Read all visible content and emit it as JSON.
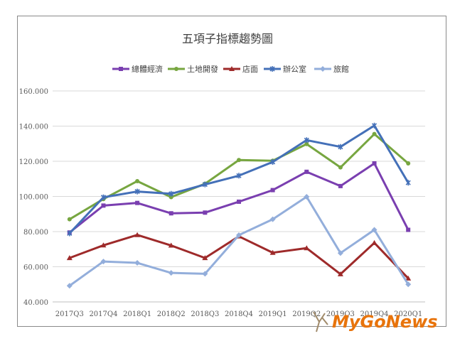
{
  "chart_data": {
    "type": "line",
    "title": "五項子指標趨勢圖",
    "categories": [
      "2017Q3",
      "2017Q4",
      "2018Q1",
      "2018Q2",
      "2018Q3",
      "2018Q4",
      "2019Q1",
      "2019Q2",
      "2019Q3",
      "2019Q4",
      "2020Q1"
    ],
    "ylim": [
      40,
      160
    ],
    "yticks": [
      "40.000",
      "60.000",
      "80.000",
      "100.000",
      "120.000",
      "140.000",
      "160.000"
    ],
    "grid": true,
    "legend_position": "top",
    "series": [
      {
        "name": "總體經濟",
        "color": "#7a3fb0",
        "marker": "square",
        "values": [
          79.5,
          94.8,
          96.3,
          90.4,
          90.8,
          97.0,
          103.6,
          114.0,
          105.9,
          118.8,
          81.0
        ]
      },
      {
        "name": "土地開發",
        "color": "#77a640",
        "marker": "circle",
        "values": [
          87.0,
          98.5,
          108.7,
          99.6,
          107.2,
          120.7,
          120.3,
          129.8,
          116.5,
          135.5,
          118.8
        ]
      },
      {
        "name": "店面",
        "color": "#9e2a2a",
        "marker": "triangle",
        "values": [
          65.0,
          72.2,
          78.1,
          72.1,
          65.0,
          77.3,
          68.0,
          70.6,
          55.8,
          73.6,
          53.4
        ]
      },
      {
        "name": "辦公室",
        "color": "#4470b8",
        "marker": "star",
        "values": [
          79.0,
          99.5,
          102.8,
          101.5,
          106.8,
          111.8,
          119.6,
          132.0,
          128.2,
          140.3,
          107.8
        ]
      },
      {
        "name": "旅館",
        "color": "#93aedb",
        "marker": "diamond",
        "values": [
          49.2,
          63.0,
          62.2,
          56.5,
          56.0,
          78.0,
          87.0,
          99.8,
          67.8,
          81.0,
          50.0
        ]
      }
    ]
  },
  "watermark": {
    "text": "MyGoNews",
    "color": "#e8740c"
  }
}
